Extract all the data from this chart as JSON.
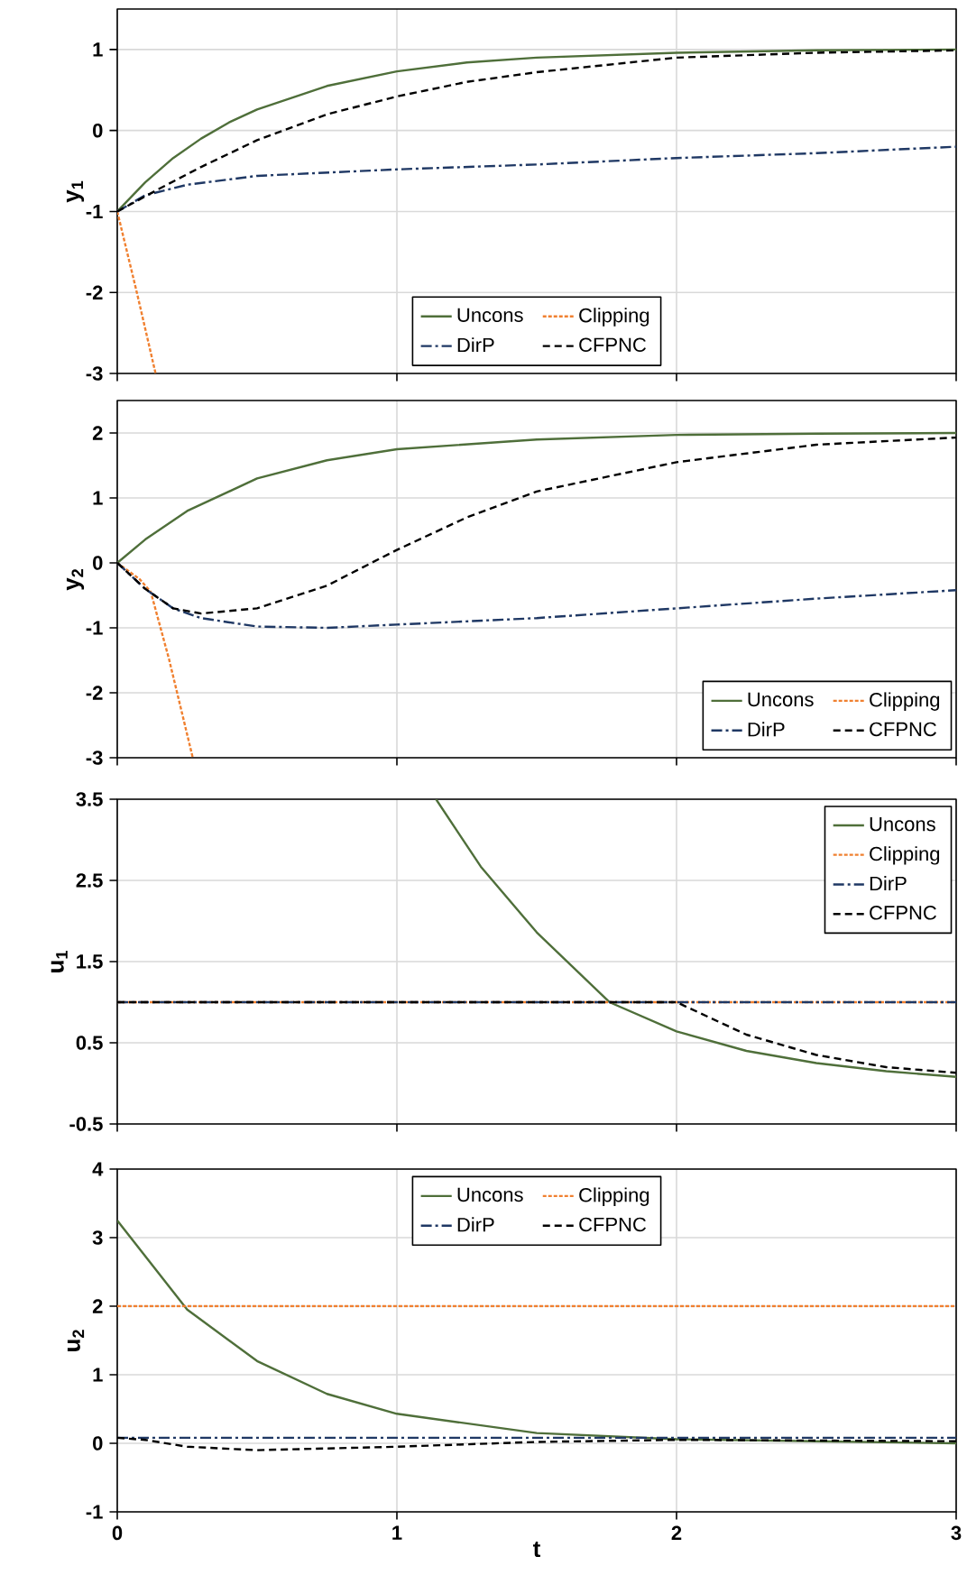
{
  "chart_data": [
    {
      "type": "line",
      "ylabel": "y$_{1}$",
      "xlim": [
        0,
        3
      ],
      "xticks": [
        0,
        1,
        2,
        3
      ],
      "ylim": [
        -3,
        1.5
      ],
      "yticks": [
        -3,
        -2,
        -1,
        0,
        1
      ],
      "tick_labels": "y",
      "grid": true,
      "legend": "bottom",
      "series": [
        {
          "name": "Uncons",
          "color": "#4f6f3a",
          "line_style": "solid",
          "x": [
            0,
            0.1,
            0.2,
            0.3,
            0.4,
            0.5,
            0.75,
            1,
            1.25,
            1.5,
            2,
            2.5,
            3
          ],
          "values": [
            -1,
            -0.64,
            -0.34,
            -0.1,
            0.1,
            0.26,
            0.55,
            0.73,
            0.84,
            0.9,
            0.96,
            0.99,
            1.0
          ]
        },
        {
          "name": "Clipping",
          "color": "#f08030",
          "line_style": "dotted",
          "x": [
            0,
            0.07,
            0.137
          ],
          "values": [
            -1,
            -2,
            -3
          ]
        },
        {
          "name": "DirP",
          "color": "#1f3864",
          "line_style": "dashdot",
          "x": [
            0,
            0.1,
            0.25,
            0.5,
            1,
            1.5,
            2,
            2.5,
            3
          ],
          "values": [
            -1,
            -0.8,
            -0.67,
            -0.56,
            -0.48,
            -0.42,
            -0.34,
            -0.28,
            -0.2
          ]
        },
        {
          "name": "CFPNC",
          "color": "#000000",
          "line_style": "dashed",
          "x": [
            0,
            0.15,
            0.3,
            0.5,
            0.75,
            1,
            1.25,
            1.5,
            2,
            2.5,
            3
          ],
          "values": [
            -1,
            -0.72,
            -0.45,
            -0.12,
            0.2,
            0.42,
            0.6,
            0.72,
            0.9,
            0.96,
            0.99
          ]
        }
      ]
    },
    {
      "type": "line",
      "ylabel": "y$_{2}$",
      "xlim": [
        0,
        3
      ],
      "xticks": [
        0,
        1,
        2,
        3
      ],
      "ylim": [
        -3,
        2.5
      ],
      "yticks": [
        -3,
        -2,
        -1,
        0,
        1,
        2
      ],
      "tick_labels": "y",
      "grid": true,
      "legend": "bottom right",
      "series": [
        {
          "name": "Uncons",
          "color": "#4f6f3a",
          "line_style": "solid",
          "x": [
            0,
            0.1,
            0.25,
            0.5,
            0.75,
            1,
            1.5,
            2,
            2.5,
            3
          ],
          "values": [
            0,
            0.36,
            0.8,
            1.3,
            1.58,
            1.75,
            1.9,
            1.97,
            1.99,
            2.0
          ]
        },
        {
          "name": "Clipping",
          "color": "#f08030",
          "line_style": "dotted",
          "x": [
            0,
            0.08,
            0.12,
            0.185,
            0.27
          ],
          "values": [
            0,
            -0.25,
            -0.45,
            -1.48,
            -3
          ]
        },
        {
          "name": "DirP",
          "color": "#1f3864",
          "line_style": "dashdot",
          "x": [
            0,
            0.1,
            0.2,
            0.3,
            0.5,
            0.75,
            1,
            1.5,
            2,
            2.5,
            3
          ],
          "values": [
            0,
            -0.4,
            -0.7,
            -0.85,
            -0.98,
            -1.0,
            -0.95,
            -0.85,
            -0.7,
            -0.55,
            -0.42
          ]
        },
        {
          "name": "CFPNC",
          "color": "#000000",
          "line_style": "dashed",
          "x": [
            0,
            0.1,
            0.2,
            0.3,
            0.5,
            0.75,
            1,
            1.25,
            1.5,
            2,
            2.5,
            3
          ],
          "values": [
            0,
            -0.4,
            -0.7,
            -0.78,
            -0.7,
            -0.35,
            0.2,
            0.7,
            1.1,
            1.55,
            1.82,
            1.93
          ]
        }
      ]
    },
    {
      "type": "line",
      "ylabel": "u$_{1}$",
      "xlim": [
        0,
        3
      ],
      "xticks": [
        0,
        1,
        2,
        3
      ],
      "ylim": [
        -0.5,
        3.5
      ],
      "yticks": [
        -0.5,
        0.5,
        1.5,
        2.5,
        3.5
      ],
      "tick_labels": "y",
      "grid": true,
      "legend": "top right",
      "series": [
        {
          "name": "Uncons",
          "color": "#4f6f3a",
          "line_style": "solid",
          "x": [
            1.14,
            1.3,
            1.5,
            1.76,
            2,
            2.25,
            2.5,
            2.75,
            3
          ],
          "values": [
            3.5,
            2.67,
            1.86,
            1.0,
            0.64,
            0.4,
            0.25,
            0.15,
            0.08
          ]
        },
        {
          "name": "Clipping",
          "color": "#f08030",
          "line_style": "dotted",
          "x": [
            0,
            3
          ],
          "values": [
            1,
            1
          ]
        },
        {
          "name": "DirP",
          "color": "#1f3864",
          "line_style": "dashdot",
          "x": [
            0,
            3
          ],
          "values": [
            1,
            1
          ]
        },
        {
          "name": "CFPNC",
          "color": "#000000",
          "line_style": "dashed",
          "x": [
            0,
            2,
            2.25,
            2.5,
            2.75,
            3
          ],
          "values": [
            1,
            1,
            0.6,
            0.35,
            0.2,
            0.13
          ]
        }
      ]
    },
    {
      "type": "line",
      "xlabel": "t",
      "ylabel": "u$_{2}$",
      "xlim": [
        0,
        3
      ],
      "xticks": [
        0,
        1,
        2,
        3
      ],
      "ylim": [
        -1,
        4
      ],
      "yticks": [
        -1,
        0,
        1,
        2,
        3,
        4
      ],
      "grid": true,
      "legend": "top",
      "series": [
        {
          "name": "Uncons",
          "color": "#4f6f3a",
          "line_style": "solid",
          "x": [
            0,
            0.25,
            0.5,
            0.75,
            1,
            1.5,
            2,
            2.5,
            3
          ],
          "values": [
            3.25,
            1.95,
            1.2,
            0.72,
            0.43,
            0.15,
            0.06,
            0.03,
            0.0
          ]
        },
        {
          "name": "Clipping",
          "color": "#f08030",
          "line_style": "dotted",
          "x": [
            0,
            3
          ],
          "values": [
            2,
            2
          ]
        },
        {
          "name": "DirP",
          "color": "#1f3864",
          "line_style": "dashdot",
          "x": [
            0,
            3
          ],
          "values": [
            0.08,
            0.08
          ]
        },
        {
          "name": "CFPNC",
          "color": "#000000",
          "line_style": "dashed",
          "x": [
            0,
            0.1,
            0.25,
            0.5,
            1,
            1.5,
            2,
            3
          ],
          "values": [
            0.08,
            0.05,
            -0.05,
            -0.1,
            -0.05,
            0.02,
            0.05,
            0.03
          ]
        }
      ]
    }
  ]
}
